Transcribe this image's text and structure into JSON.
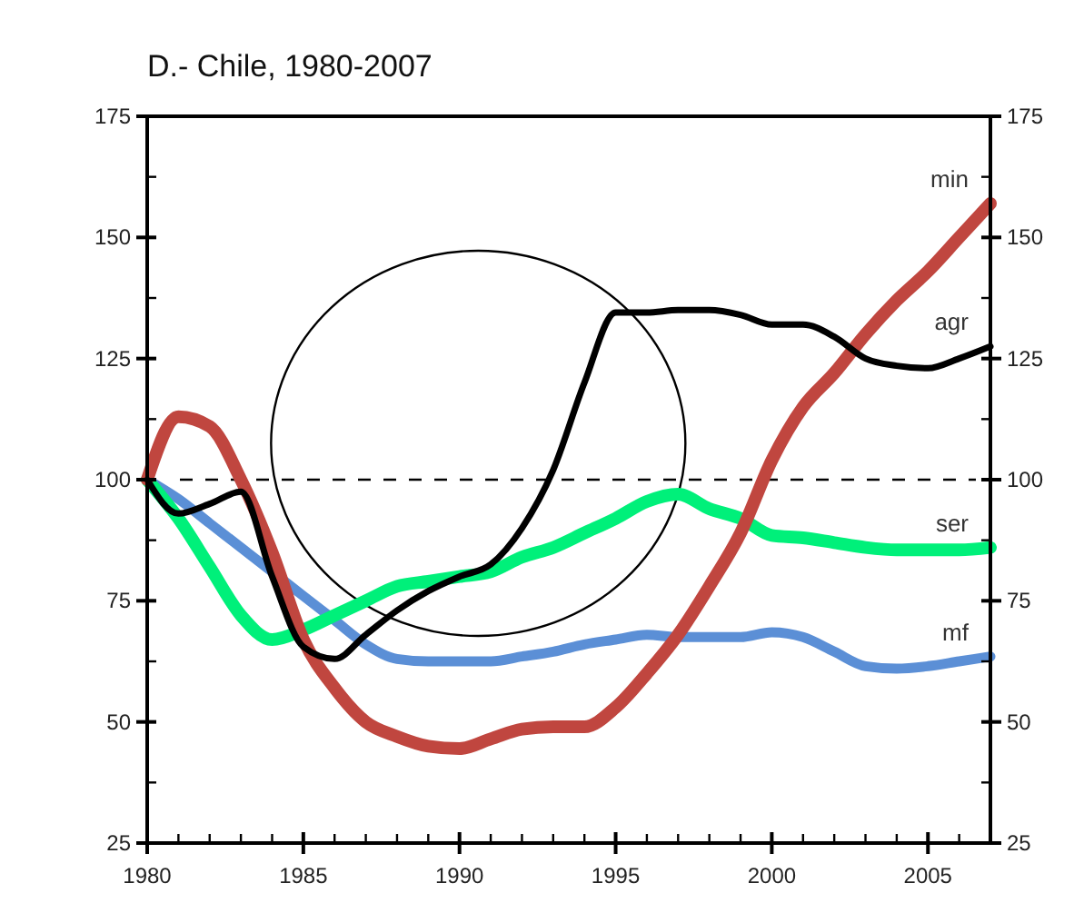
{
  "chart_data": {
    "type": "line",
    "title": "D.- Chile, 1980-2007",
    "x": [
      1980,
      1981,
      1982,
      1983,
      1984,
      1985,
      1986,
      1987,
      1988,
      1989,
      1990,
      1991,
      1992,
      1993,
      1994,
      1995,
      1996,
      1997,
      1998,
      1999,
      2000,
      2001,
      2002,
      2003,
      2004,
      2005,
      2006,
      2007
    ],
    "series": [
      {
        "name": "min",
        "color": "#c0463f",
        "values": [
          100,
          113,
          111,
          100,
          85,
          67,
          57,
          50,
          47,
          45,
          44.5,
          46.5,
          48.5,
          49,
          49,
          53,
          60,
          68,
          78,
          89,
          104,
          115,
          122,
          130,
          137,
          143,
          150,
          157
        ]
      },
      {
        "name": "agr",
        "color": "#000000",
        "values": [
          100,
          93,
          95,
          97.5,
          80,
          65.5,
          63,
          68,
          73,
          77,
          80,
          82.5,
          90,
          102,
          120,
          134.5,
          134.5,
          135,
          135,
          134,
          132,
          132,
          129.5,
          125,
          123.5,
          123,
          125,
          127.5
        ]
      },
      {
        "name": "ser",
        "color": "#00f07a",
        "values": [
          100,
          92,
          82,
          72,
          67,
          69,
          72,
          75,
          78,
          79,
          80,
          81,
          84,
          86,
          89,
          92,
          95.5,
          97,
          94,
          92,
          88.5,
          88,
          87,
          86,
          85.5,
          85.5,
          85.5,
          86
        ]
      },
      {
        "name": "mf",
        "color": "#5b8fd6",
        "values": [
          100,
          96,
          91,
          86,
          81,
          76,
          71,
          66,
          63,
          62.5,
          62.5,
          62.5,
          63.5,
          64.5,
          66,
          67,
          68,
          67.5,
          67.5,
          67.5,
          68.5,
          67.5,
          64.5,
          61.5,
          61,
          61.5,
          62.5,
          63.5
        ]
      }
    ],
    "xlim": [
      1980,
      2007
    ],
    "xticks": [
      1980,
      {
        "value": 1981,
        "label": null
      },
      {
        "value": 1982,
        "label": null
      },
      {
        "value": 1983,
        "label": null
      },
      {
        "value": 1984,
        "label": null
      },
      1985,
      {
        "value": 1986,
        "label": null
      },
      {
        "value": 1987,
        "label": null
      },
      {
        "value": 1988,
        "label": null
      },
      {
        "value": 1989,
        "label": null
      },
      1990,
      {
        "value": 1991,
        "label": null
      },
      {
        "value": 1992,
        "label": null
      },
      {
        "value": 1993,
        "label": null
      },
      {
        "value": 1994,
        "label": null
      },
      1995,
      {
        "value": 1996,
        "label": null
      },
      {
        "value": 1997,
        "label": null
      },
      {
        "value": 1998,
        "label": null
      },
      {
        "value": 1999,
        "label": null
      },
      2000,
      {
        "value": 2001,
        "label": null
      },
      {
        "value": 2002,
        "label": null
      },
      {
        "value": 2003,
        "label": null
      },
      {
        "value": 2004,
        "label": null
      },
      2005,
      {
        "value": 2006,
        "label": null
      },
      {
        "value": 2007,
        "label": null
      }
    ],
    "ylim": [
      25,
      175
    ],
    "yticks": [
      25,
      {
        "value": 37.5,
        "label": null
      },
      50,
      {
        "value": 62.5,
        "label": null
      },
      75,
      {
        "value": 87.5,
        "label": null
      },
      100,
      {
        "value": 112.5,
        "label": null
      },
      125,
      {
        "value": 137.5,
        "label": null
      },
      150,
      {
        "value": 162.5,
        "label": null
      },
      175
    ],
    "y2lim": [
      25,
      175
    ],
    "y2ticks": [
      25,
      {
        "value": 37.5,
        "label": null
      },
      50,
      {
        "value": 62.5,
        "label": null
      },
      75,
      {
        "value": 87.5,
        "label": null
      },
      100,
      {
        "value": 112.5,
        "label": null
      },
      125,
      {
        "value": 137.5,
        "label": null
      },
      150,
      {
        "value": 162.5,
        "label": null
      },
      175
    ],
    "ref_lines": [
      {
        "axis": "y",
        "value": 100,
        "color": "#000000",
        "line_style": "dashed"
      }
    ],
    "grid": false,
    "marker": "none",
    "line_style": "solid"
  }
}
